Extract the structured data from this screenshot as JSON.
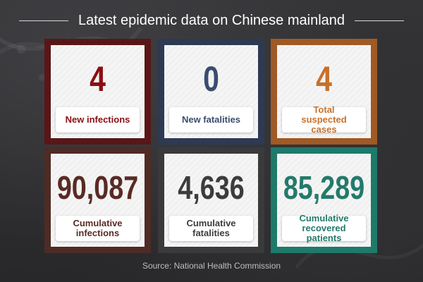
{
  "title": "Latest epidemic data on Chinese mainland",
  "cards": [
    {
      "value": "4",
      "label": "New infections",
      "frame_color": "#5a1616",
      "text_color": "#8b0f12"
    },
    {
      "value": "0",
      "label": "New fatalities",
      "frame_color": "#2e3a52",
      "text_color": "#3a4d6e"
    },
    {
      "value": "4",
      "label": "Total suspected cases",
      "frame_color": "#a05a24",
      "text_color": "#c8702a"
    },
    {
      "value": "90,087",
      "label": "Cumulative infections",
      "frame_color": "#4e2b25",
      "text_color": "#5a2a24"
    },
    {
      "value": "4,636",
      "label": "Cumulative fatalities",
      "frame_color": "#3a3a3c",
      "text_color": "#3c3c3c"
    },
    {
      "value": "85,289",
      "label": "Cumulative recovered patients",
      "frame_color": "#1e7a6a",
      "text_color": "#237a6c"
    }
  ],
  "source": "Source: National Health Commission"
}
